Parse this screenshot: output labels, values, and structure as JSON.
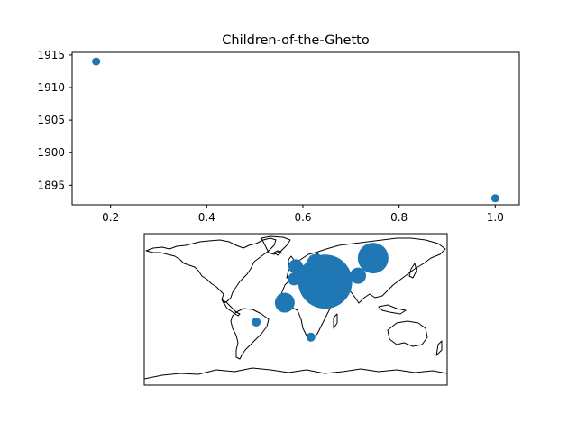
{
  "chart_data": [
    {
      "type": "scatter",
      "title": "Children-of-the-Ghetto",
      "xlabel": "",
      "ylabel": "",
      "grid": false,
      "xlim": [
        0.12,
        1.05
      ],
      "ylim": [
        1892,
        1915.4
      ],
      "xticks": [
        0.2,
        0.4,
        0.6,
        0.8,
        1.0
      ],
      "xtick_labels": [
        "0.2",
        "0.4",
        "0.6",
        "0.8",
        "1.0"
      ],
      "yticks": [
        1895,
        1900,
        1905,
        1910,
        1915
      ],
      "ytick_labels": [
        "1895",
        "1900",
        "1905",
        "1910",
        "1915"
      ],
      "x": [
        0.17,
        1.0
      ],
      "y": [
        1914,
        1893
      ],
      "color": "#1f77b4"
    },
    {
      "type": "scatter",
      "subtype": "bubble-map",
      "projection": "equirectangular",
      "lon_range": [
        -180,
        180
      ],
      "lat_range": [
        -90,
        90
      ],
      "color": "#1f77b4",
      "points": [
        {
          "lon": 35,
          "lat": 33,
          "size": 30
        },
        {
          "lon": 92,
          "lat": 61,
          "size": 17
        },
        {
          "lon": 24,
          "lat": 55,
          "size": 10
        },
        {
          "lon": 38,
          "lat": 55,
          "size": 7
        },
        {
          "lon": -13,
          "lat": 8,
          "size": 11
        },
        {
          "lon": 74,
          "lat": 40,
          "size": 9
        },
        {
          "lon": 0,
          "lat": 51,
          "size": 8
        },
        {
          "lon": 4,
          "lat": 47,
          "size": 7
        },
        {
          "lon": -2,
          "lat": 36,
          "size": 7
        },
        {
          "lon": 18,
          "lat": 47,
          "size": 6
        },
        {
          "lon": 54,
          "lat": 23,
          "size": 5
        },
        {
          "lon": -47,
          "lat": -15,
          "size": 5
        },
        {
          "lon": 18,
          "lat": -33,
          "size": 5
        }
      ]
    }
  ]
}
